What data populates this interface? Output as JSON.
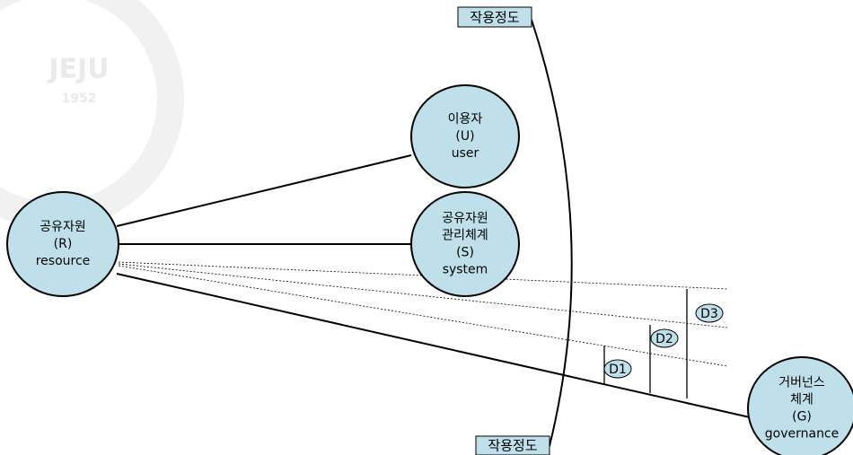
{
  "watermark": {
    "name": "JEJU",
    "year": "1952"
  },
  "labels": {
    "top": "작용정도",
    "bottom": "작용정도"
  },
  "nodes": [
    {
      "id": "R",
      "lines": [
        "공유자원",
        "(R)",
        "resource"
      ]
    },
    {
      "id": "U",
      "lines": [
        "이용자",
        "(U)",
        "user"
      ]
    },
    {
      "id": "S",
      "lines": [
        "공유자원",
        "관리체계",
        "(S)",
        "system"
      ]
    },
    {
      "id": "G",
      "lines": [
        "거버넌스",
        "체계",
        "(G)",
        "governance"
      ]
    }
  ],
  "distances": [
    "D1",
    "D2",
    "D3"
  ]
}
